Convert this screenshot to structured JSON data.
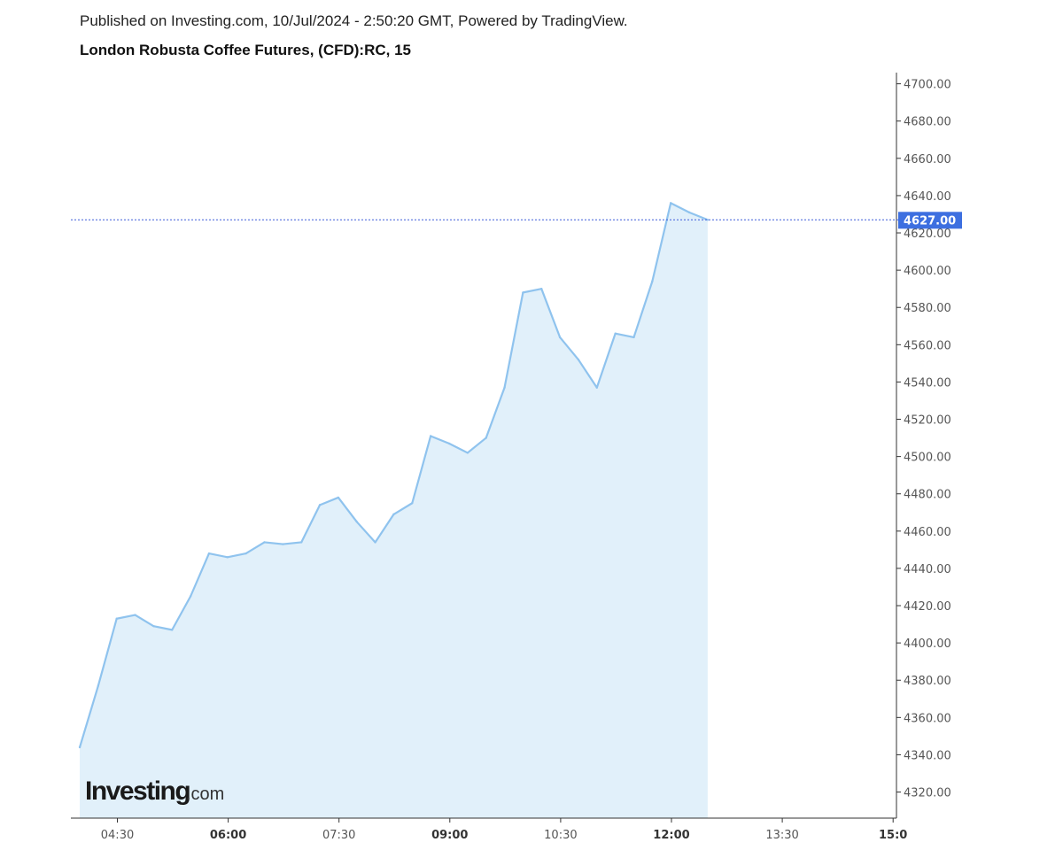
{
  "header": {
    "published": "Published on Investing.com, 10/Jul/2024 - 2:50:20 GMT, Powered by TradingView.",
    "title": "London Robusta Coffee Futures, (CFD):RC, 15"
  },
  "logo": {
    "main": "Investing",
    "sub": ".com"
  },
  "colors": {
    "line": "#8fc3ee",
    "fill": "#e1f0fa",
    "price_line": "#3d5bd9",
    "price_label_bg": "#3d6fe0",
    "axis": "#333333"
  },
  "chart_data": {
    "type": "area",
    "title": "London Robusta Coffee Futures, (CFD):RC, 15",
    "xlabel": "",
    "ylabel": "",
    "x_tick_labels": [
      {
        "label": "04:30",
        "bold": false
      },
      {
        "label": "06:00",
        "bold": true
      },
      {
        "label": "07:30",
        "bold": false
      },
      {
        "label": "09:00",
        "bold": true
      },
      {
        "label": "10:30",
        "bold": false
      },
      {
        "label": "12:00",
        "bold": true
      },
      {
        "label": "13:30",
        "bold": false
      },
      {
        "label": "15:0",
        "bold": true
      }
    ],
    "y_ticks": [
      "4320.00",
      "4340.00",
      "4360.00",
      "4380.00",
      "4400.00",
      "4420.00",
      "4440.00",
      "4460.00",
      "4480.00",
      "4500.00",
      "4520.00",
      "4540.00",
      "4560.00",
      "4580.00",
      "4600.00",
      "4620.00",
      "4640.00",
      "4660.00",
      "4680.00",
      "4700.00"
    ],
    "ylim": [
      4306,
      4706
    ],
    "current_price": 4627,
    "current_price_label": "4627.00",
    "grid": false,
    "series": [
      {
        "interval_minutes": 15,
        "x_start": "04:15",
        "values": [
          4344,
          4377,
          4413,
          4415,
          4409,
          4407,
          4425,
          4448,
          4446,
          4448,
          4454,
          4453,
          4454,
          4474,
          4478,
          4465,
          4454,
          4469,
          4475,
          4511,
          4507,
          4502,
          4510,
          4537,
          4588,
          4590,
          4564,
          4552,
          4537,
          4566,
          4564,
          4594,
          4636,
          4631,
          4627
        ]
      }
    ]
  }
}
